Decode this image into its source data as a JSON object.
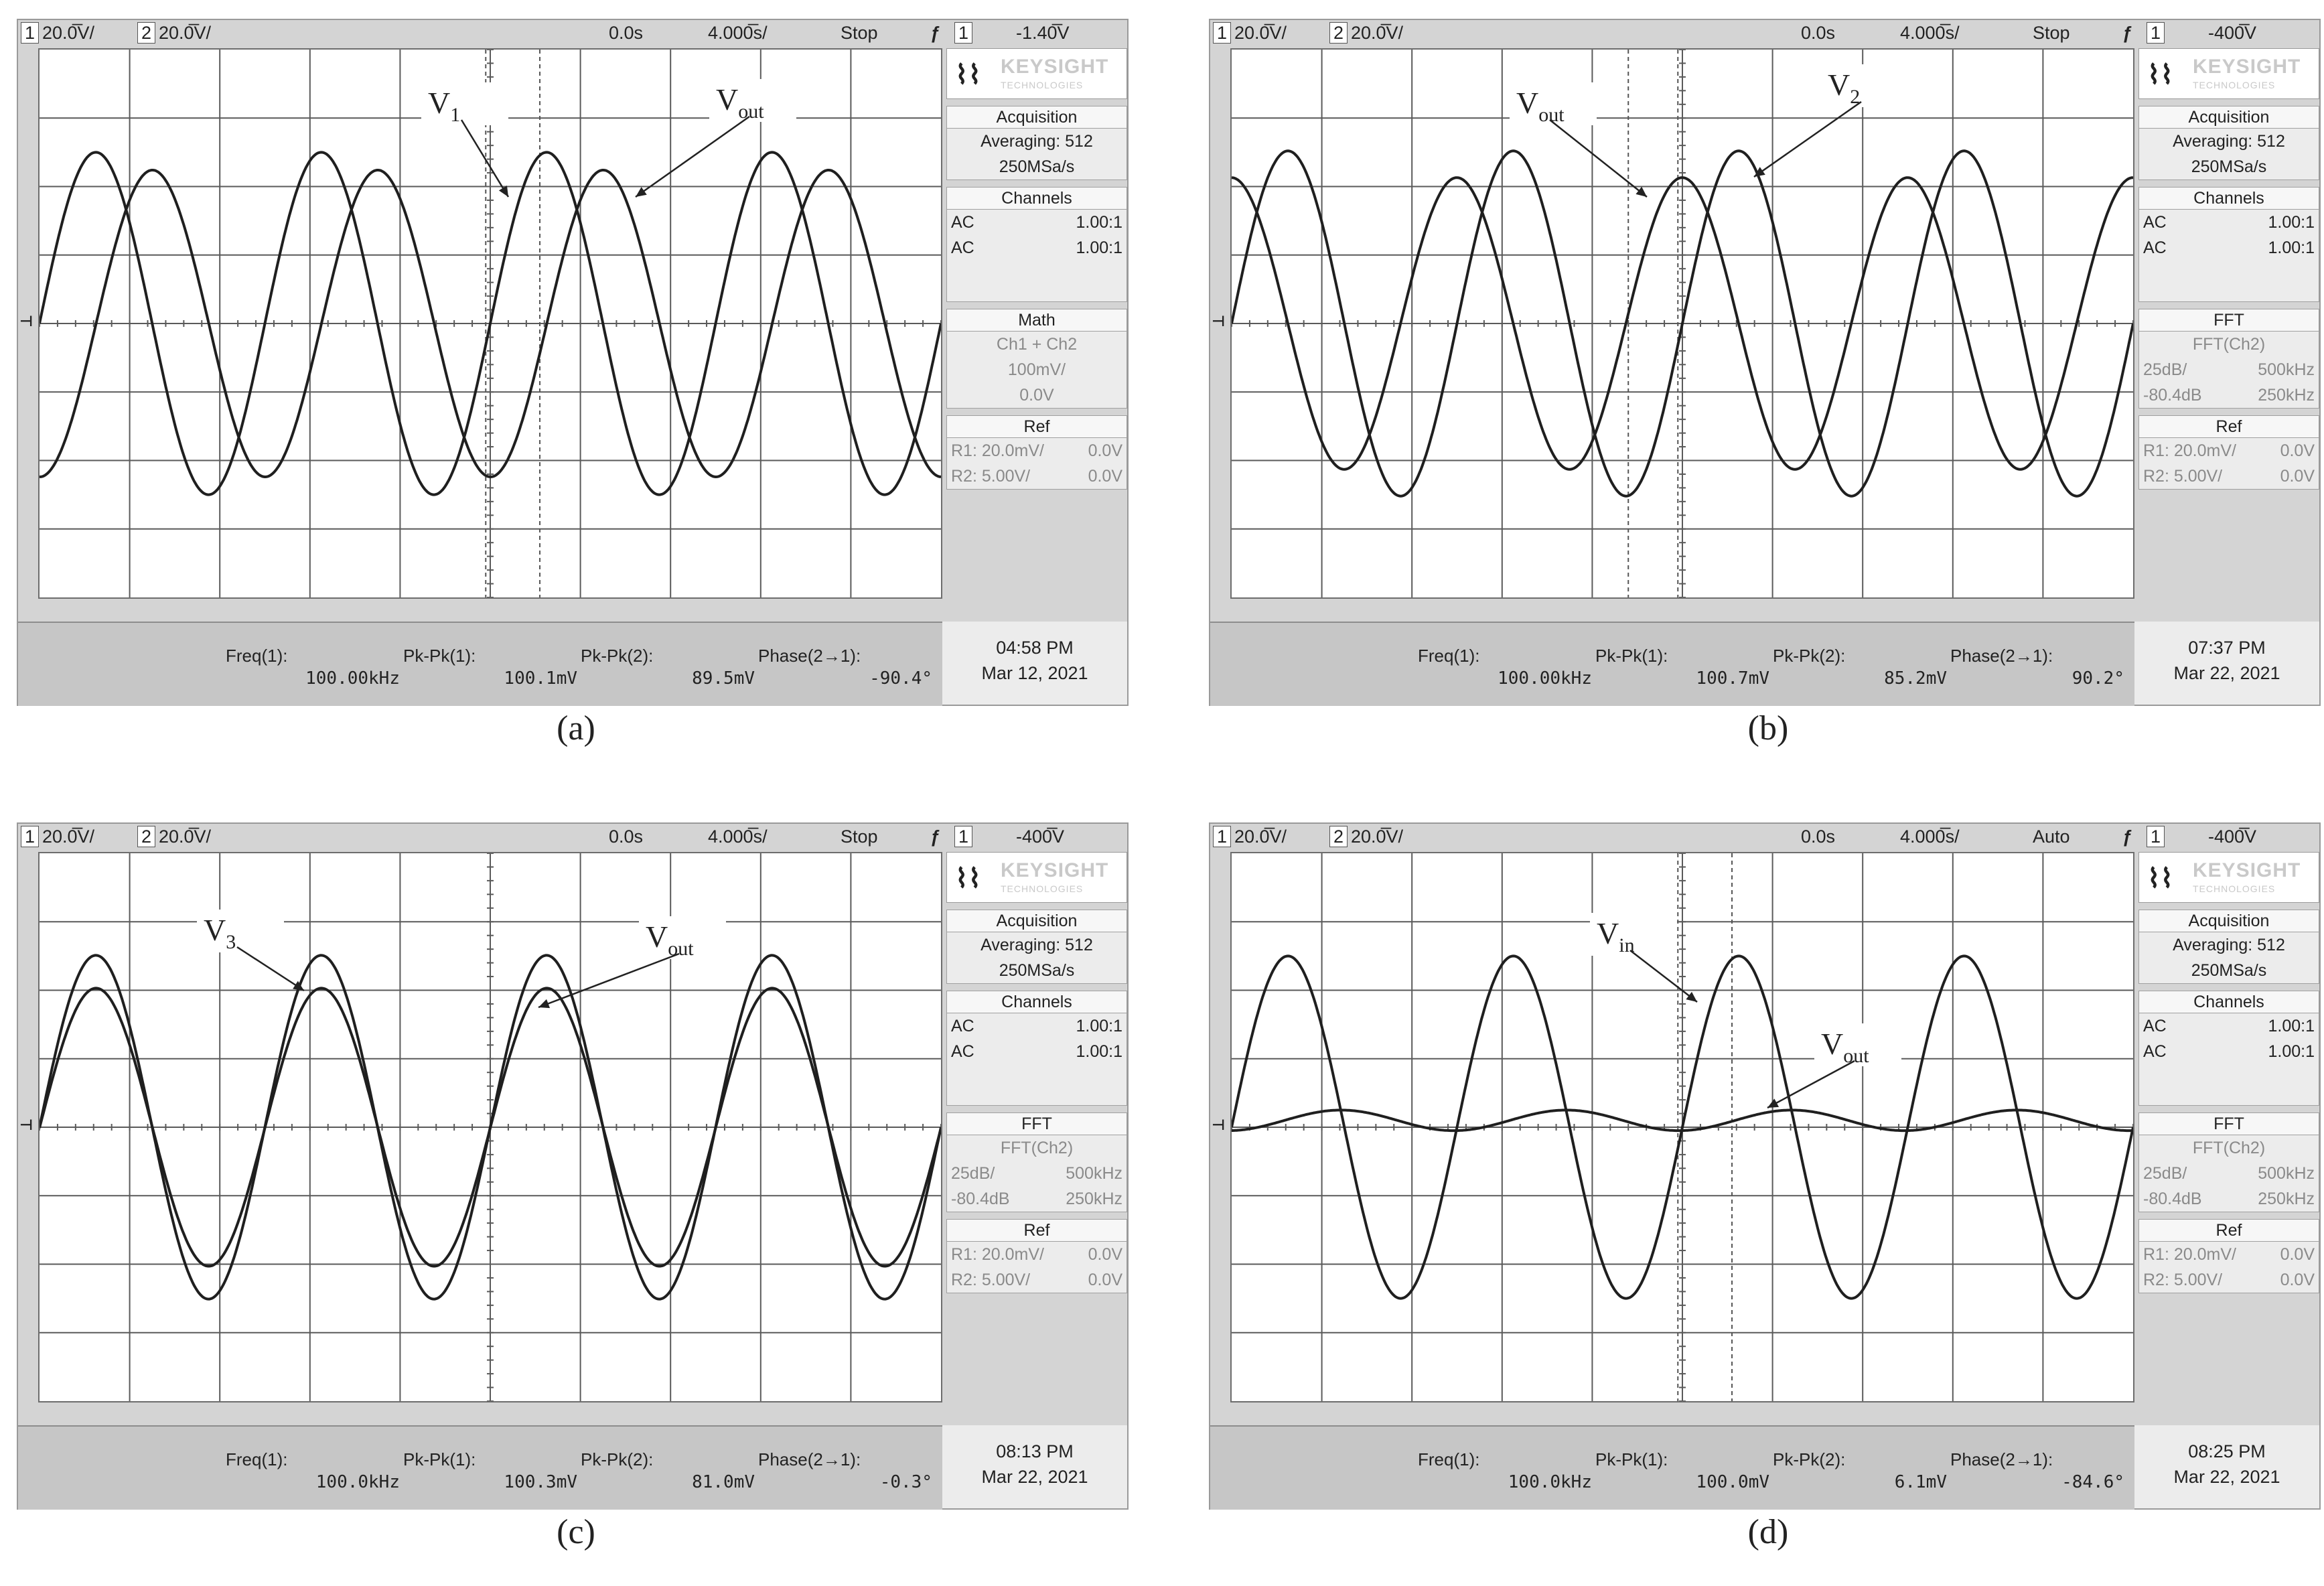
{
  "panels": [
    {
      "caption": "(a)",
      "topbar": {
        "ch1": "1",
        "ch1_scale": "20.0̅V/",
        "ch2": "2",
        "ch2_scale": "20.0̅V/",
        "time_pos": "0.0s",
        "time_scale": "4.000̅s/",
        "status": "Stop",
        "trig_icon": "trigger-edge-icon",
        "trig_ch": "1",
        "trig_level": "-1.40̅V"
      },
      "side": {
        "brand": "KEYSIGHT",
        "brand_sub": "TECHNOLOGIES",
        "acq_title": "Acquisition",
        "acq_avg": "Averaging: 512",
        "acq_rate": "250MSa/s",
        "chan_title": "Channels",
        "chan": [
          {
            "coupling": "AC",
            "ratio": "1.00:1"
          },
          {
            "coupling": "AC",
            "ratio": "1.00:1"
          }
        ],
        "mid_title": "Math",
        "mid_lines": [
          "Ch1 + Ch2",
          "100mV/",
          "0.0V"
        ],
        "mid_rows": [],
        "ref_title": "Ref",
        "ref": [
          {
            "name": "R1: 20.0mV/",
            "offset": "0.0V"
          },
          {
            "name": "R2:  5.00V/",
            "offset": "0.0V"
          }
        ]
      },
      "meas": [
        {
          "label": "Freq(1):",
          "value": "100.00kHz"
        },
        {
          "label": "Pk-Pk(1):",
          "value": "100.1mV"
        },
        {
          "label": "Pk-Pk(2):",
          "value": "89.5mV"
        },
        {
          "label": "Phase(2→1):",
          "value": "-90.4°"
        }
      ],
      "time": "04:58 PM",
      "date": "Mar 12, 2021",
      "annotations": [
        {
          "main": "V",
          "sub": "1"
        },
        {
          "main": "V",
          "sub": "out"
        }
      ]
    },
    {
      "caption": "(b)",
      "topbar": {
        "ch1": "1",
        "ch1_scale": "20.0̅V/",
        "ch2": "2",
        "ch2_scale": "20.0̅V/",
        "time_pos": "0.0s",
        "time_scale": "4.000̅s/",
        "status": "Stop",
        "trig_icon": "trigger-edge-icon",
        "trig_ch": "1",
        "trig_level": "-400̅V"
      },
      "side": {
        "brand": "KEYSIGHT",
        "brand_sub": "TECHNOLOGIES",
        "acq_title": "Acquisition",
        "acq_avg": "Averaging: 512",
        "acq_rate": "250MSa/s",
        "chan_title": "Channels",
        "chan": [
          {
            "coupling": "AC",
            "ratio": "1.00:1"
          },
          {
            "coupling": "AC",
            "ratio": "1.00:1"
          }
        ],
        "mid_title": "FFT",
        "mid_lines": [
          "FFT(Ch2)"
        ],
        "mid_rows": [
          {
            "l": "25dB/",
            "r": "500kHz"
          },
          {
            "l": "-80.4dB",
            "r": "250kHz"
          }
        ],
        "ref_title": "Ref",
        "ref": [
          {
            "name": "R1: 20.0mV/",
            "offset": "0.0V"
          },
          {
            "name": "R2:  5.00V/",
            "offset": "0.0V"
          }
        ]
      },
      "meas": [
        {
          "label": "Freq(1):",
          "value": "100.00kHz"
        },
        {
          "label": "Pk-Pk(1):",
          "value": "100.7mV"
        },
        {
          "label": "Pk-Pk(2):",
          "value": "85.2mV"
        },
        {
          "label": "Phase(2→1):",
          "value": "90.2°"
        }
      ],
      "time": "07:37 PM",
      "date": "Mar 22, 2021",
      "annotations": [
        {
          "main": "V",
          "sub": "out"
        },
        {
          "main": "V",
          "sub": "2"
        }
      ]
    },
    {
      "caption": "(c)",
      "topbar": {
        "ch1": "1",
        "ch1_scale": "20.0̅V/",
        "ch2": "2",
        "ch2_scale": "20.0̅V/",
        "time_pos": "0.0s",
        "time_scale": "4.000̅s/",
        "status": "Stop",
        "trig_icon": "trigger-edge-icon",
        "trig_ch": "1",
        "trig_level": "-400̅V"
      },
      "side": {
        "brand": "KEYSIGHT",
        "brand_sub": "TECHNOLOGIES",
        "acq_title": "Acquisition",
        "acq_avg": "Averaging: 512",
        "acq_rate": "250MSa/s",
        "chan_title": "Channels",
        "chan": [
          {
            "coupling": "AC",
            "ratio": "1.00:1"
          },
          {
            "coupling": "AC",
            "ratio": "1.00:1"
          }
        ],
        "mid_title": "FFT",
        "mid_lines": [
          "FFT(Ch2)"
        ],
        "mid_rows": [
          {
            "l": "25dB/",
            "r": "500kHz"
          },
          {
            "l": "-80.4dB",
            "r": "250kHz"
          }
        ],
        "ref_title": "Ref",
        "ref": [
          {
            "name": "R1: 20.0mV/",
            "offset": "0.0V"
          },
          {
            "name": "R2:  5.00V/",
            "offset": "0.0V"
          }
        ]
      },
      "meas": [
        {
          "label": "Freq(1):",
          "value": "100.0kHz"
        },
        {
          "label": "Pk-Pk(1):",
          "value": "100.3mV"
        },
        {
          "label": "Pk-Pk(2):",
          "value": "81.0mV"
        },
        {
          "label": "Phase(2→1):",
          "value": "-0.3°"
        }
      ],
      "time": "08:13 PM",
      "date": "Mar 22, 2021",
      "annotations": [
        {
          "main": "V",
          "sub": "3"
        },
        {
          "main": "V",
          "sub": "out"
        }
      ]
    },
    {
      "caption": "(d)",
      "topbar": {
        "ch1": "1",
        "ch1_scale": "20.0̅V/",
        "ch2": "2",
        "ch2_scale": "20.0̅V/",
        "time_pos": "0.0s",
        "time_scale": "4.000̅s/",
        "status": "Auto",
        "trig_icon": "trigger-edge-icon",
        "trig_ch": "1",
        "trig_level": "-400̅V"
      },
      "side": {
        "brand": "KEYSIGHT",
        "brand_sub": "TECHNOLOGIES",
        "acq_title": "Acquisition",
        "acq_avg": "Averaging: 512",
        "acq_rate": "250MSa/s",
        "chan_title": "Channels",
        "chan": [
          {
            "coupling": "AC",
            "ratio": "1.00:1"
          },
          {
            "coupling": "AC",
            "ratio": "1.00:1"
          }
        ],
        "mid_title": "FFT",
        "mid_lines": [
          "FFT(Ch2)"
        ],
        "mid_rows": [
          {
            "l": "25dB/",
            "r": "500kHz"
          },
          {
            "l": "-80.4dB",
            "r": "250kHz"
          }
        ],
        "ref_title": "Ref",
        "ref": [
          {
            "name": "R1: 20.0mV/",
            "offset": "0.0V"
          },
          {
            "name": "R2:  5.00V/",
            "offset": "0.0V"
          }
        ]
      },
      "meas": [
        {
          "label": "Freq(1):",
          "value": "100.0kHz"
        },
        {
          "label": "Pk-Pk(1):",
          "value": "100.0mV"
        },
        {
          "label": "Pk-Pk(2):",
          "value": "6.1mV"
        },
        {
          "label": "Phase(2→1):",
          "value": "-84.6°"
        }
      ],
      "time": "08:25 PM",
      "date": "Mar 22, 2021",
      "annotations": [
        {
          "main": "V",
          "sub": "in"
        },
        {
          "main": "V",
          "sub": "out"
        }
      ]
    }
  ],
  "chart_data": [
    {
      "type": "line",
      "x_unit": "div",
      "y_unit": "div",
      "xlim": [
        -5,
        5
      ],
      "ylim": [
        -4,
        4
      ],
      "series": [
        {
          "name": "V1",
          "amplitude_div": 2.5,
          "period_div": 2.5,
          "phase_deg": 0
        },
        {
          "name": "Vout",
          "amplitude_div": 2.24,
          "period_div": 2.5,
          "phase_deg": -90.4
        }
      ]
    },
    {
      "type": "line",
      "x_unit": "div",
      "y_unit": "div",
      "xlim": [
        -5,
        5
      ],
      "ylim": [
        -4,
        4
      ],
      "series": [
        {
          "name": "V2",
          "amplitude_div": 2.52,
          "period_div": 2.5,
          "phase_deg": 0
        },
        {
          "name": "Vout",
          "amplitude_div": 2.13,
          "period_div": 2.5,
          "phase_deg": 90.2
        }
      ]
    },
    {
      "type": "line",
      "x_unit": "div",
      "y_unit": "div",
      "xlim": [
        -5,
        5
      ],
      "ylim": [
        -4,
        4
      ],
      "series": [
        {
          "name": "V3",
          "amplitude_div": 2.51,
          "period_div": 2.5,
          "phase_deg": 0
        },
        {
          "name": "Vout",
          "amplitude_div": 2.03,
          "period_div": 2.5,
          "phase_deg": -0.3
        }
      ]
    },
    {
      "type": "line",
      "x_unit": "div",
      "y_unit": "div",
      "xlim": [
        -5,
        5
      ],
      "ylim": [
        -4,
        4
      ],
      "series": [
        {
          "name": "Vin",
          "amplitude_div": 2.5,
          "period_div": 2.5,
          "phase_deg": 0
        },
        {
          "name": "Vout",
          "amplitude_div": 0.15,
          "period_div": 2.5,
          "phase_deg": -84.6
        }
      ]
    }
  ]
}
